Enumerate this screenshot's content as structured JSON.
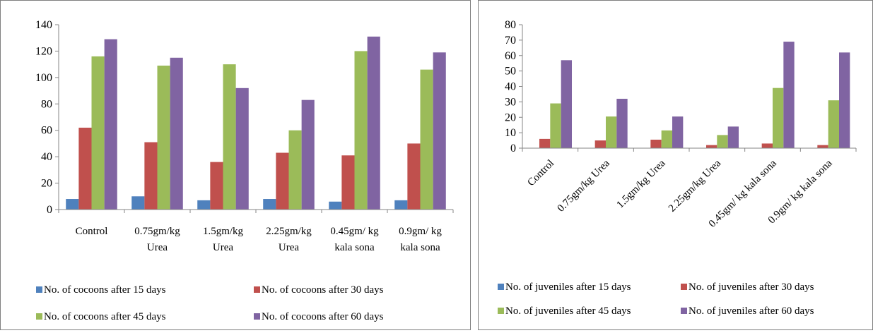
{
  "chart_data": [
    {
      "type": "bar",
      "categories": [
        "Control",
        "0.75gm/kg Urea",
        "1.5gm/kg Urea",
        "2.25gm/kg Urea",
        "0.45gm/ kg kala sona",
        "0.9gm/ kg kala sona"
      ],
      "category_lines": [
        [
          "Control"
        ],
        [
          "0.75gm/kg",
          "Urea"
        ],
        [
          "1.5gm/kg",
          "Urea"
        ],
        [
          "2.25gm/kg",
          "Urea"
        ],
        [
          "0.45gm/ kg",
          "kala sona"
        ],
        [
          "0.9gm/ kg",
          "kala sona"
        ]
      ],
      "series": [
        {
          "name": "No. of cocoons after 15 days",
          "color": "#4f81bd",
          "values": [
            8,
            10,
            7,
            8,
            6,
            7
          ]
        },
        {
          "name": "No. of cocoons after 30 days",
          "color": "#c0504d",
          "values": [
            62,
            51,
            36,
            43,
            41,
            50
          ]
        },
        {
          "name": "No. of cocoons after 45 days",
          "color": "#9bbb59",
          "values": [
            116,
            109,
            110,
            60,
            120,
            106
          ]
        },
        {
          "name": "No. of cocoons after 60 days",
          "color": "#8064a2",
          "values": [
            129,
            115,
            92,
            83,
            131,
            119
          ]
        }
      ],
      "ylim": [
        0,
        140
      ],
      "yticks": [
        0,
        20,
        40,
        60,
        80,
        100,
        120,
        140
      ],
      "legend_position": "bottom",
      "grid": false
    },
    {
      "type": "bar",
      "categories": [
        "Control",
        "0.75gm/kg Urea",
        "1.5gm/kg Urea",
        "2.25gm/kg Urea",
        "0.45gm/ kg kala sona",
        "0.9gm/ kg kala sona"
      ],
      "series": [
        {
          "name": "No. of juveniles after 15 days",
          "color": "#4f81bd",
          "values": [
            0,
            0,
            0,
            0,
            0,
            0
          ]
        },
        {
          "name": "No. of juveniles after 30 days",
          "color": "#c0504d",
          "values": [
            6,
            5,
            5.5,
            2,
            3,
            2
          ]
        },
        {
          "name": "No. of juveniles after 45 days",
          "color": "#9bbb59",
          "values": [
            29,
            20.5,
            11.5,
            8.5,
            39,
            31
          ]
        },
        {
          "name": "No. of juveniles after 60 days",
          "color": "#8064a2",
          "values": [
            57,
            32,
            20.5,
            14,
            69,
            62
          ]
        }
      ],
      "ylim": [
        0,
        80
      ],
      "yticks": [
        0,
        10,
        20,
        30,
        40,
        50,
        60,
        70,
        80
      ],
      "legend_position": "bottom",
      "grid": false
    }
  ]
}
